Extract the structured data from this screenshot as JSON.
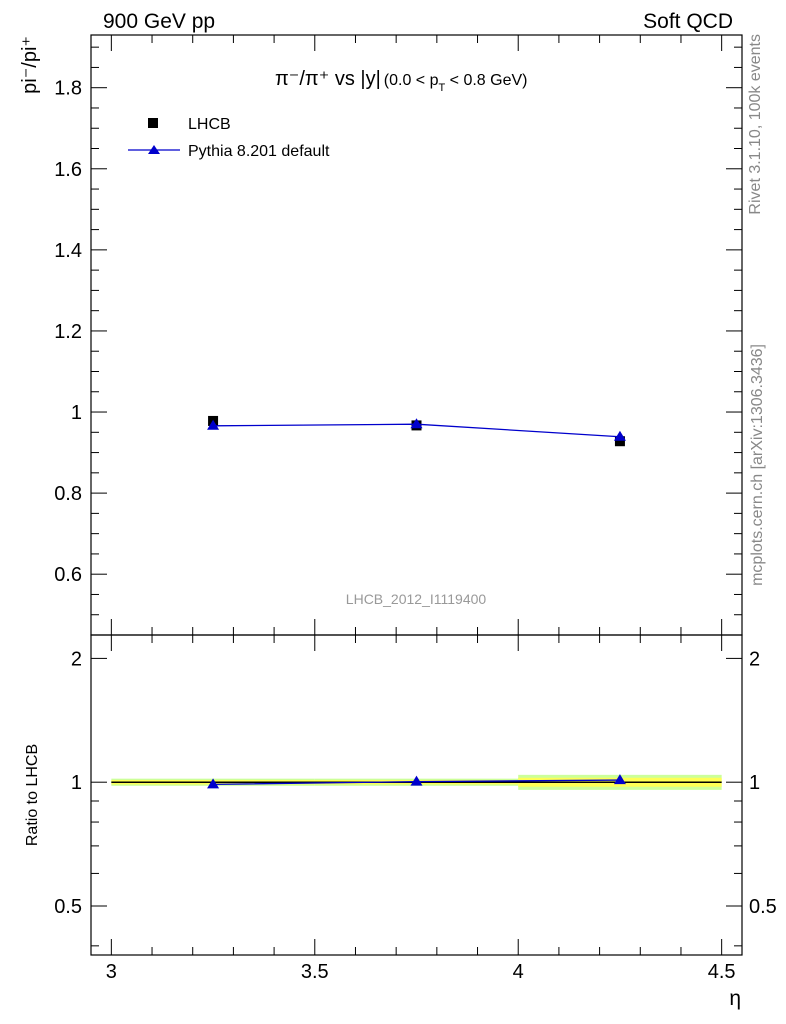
{
  "header": {
    "left": "900 GeV pp",
    "right": "Soft QCD"
  },
  "side_labels": {
    "rivet": "Rivet 3.1.10,  100k events",
    "source": "mcplots.cern.ch [arXiv:1306.3436]"
  },
  "watermark": "LHCB_2012_I1119400",
  "colors": {
    "data": "#000000",
    "mc": "#0000cc",
    "band_inner": "#ffff55",
    "band_outer": "#ccff99"
  },
  "chart_data": [
    {
      "type": "scatter",
      "panel": "main",
      "title_parts": {
        "quantity": "π⁻/π⁺ vs |y|",
        "cut_open": "(0.0 < p",
        "cut_sub": "T",
        "cut_close": " < 0.8 GeV)"
      },
      "ylabel": "pi⁻/pi⁺",
      "xlim": [
        2.95,
        4.55
      ],
      "ylim": [
        0.45,
        1.93
      ],
      "y_ticks": [
        0.6,
        0.8,
        1.0,
        1.2,
        1.4,
        1.6,
        1.8
      ],
      "y_tick_labels": [
        "0.6",
        "0.8",
        "1",
        "1.2",
        "1.4",
        "1.6",
        "1.8"
      ],
      "legend_position": "top-left",
      "series": [
        {
          "name": "LHCB",
          "kind": "data",
          "marker": "square",
          "x": [
            3.25,
            3.75,
            4.25
          ],
          "y": [
            0.978,
            0.967,
            0.928
          ]
        },
        {
          "name": "Pythia 8.201 default",
          "kind": "mc",
          "marker": "triangle",
          "x": [
            3.25,
            3.75,
            4.25
          ],
          "y": [
            0.966,
            0.97,
            0.939
          ]
        }
      ]
    },
    {
      "type": "line",
      "panel": "ratio",
      "ylabel": "Ratio to LHCB",
      "xlabel": "η",
      "xlim": [
        2.95,
        4.55
      ],
      "ylim": [
        0.38,
        2.28
      ],
      "log_y": true,
      "x_ticks": [
        3,
        3.5,
        4,
        4.5
      ],
      "x_tick_labels": [
        "3",
        "3.5",
        "4",
        "4.5"
      ],
      "y_ticks": [
        0.5,
        1,
        2
      ],
      "y_tick_labels": [
        "0.5",
        "1",
        "2"
      ],
      "band_x_edges": [
        3,
        3.5,
        4,
        4.5
      ],
      "band_inner": [
        0.012,
        0.012,
        0.025
      ],
      "band_outer": [
        0.02,
        0.02,
        0.042
      ],
      "series": [
        {
          "name": "Pythia 8.201 default",
          "kind": "mc",
          "x": [
            3.25,
            3.75,
            4.25
          ],
          "y": [
            0.988,
            1.003,
            1.012
          ]
        }
      ]
    }
  ]
}
